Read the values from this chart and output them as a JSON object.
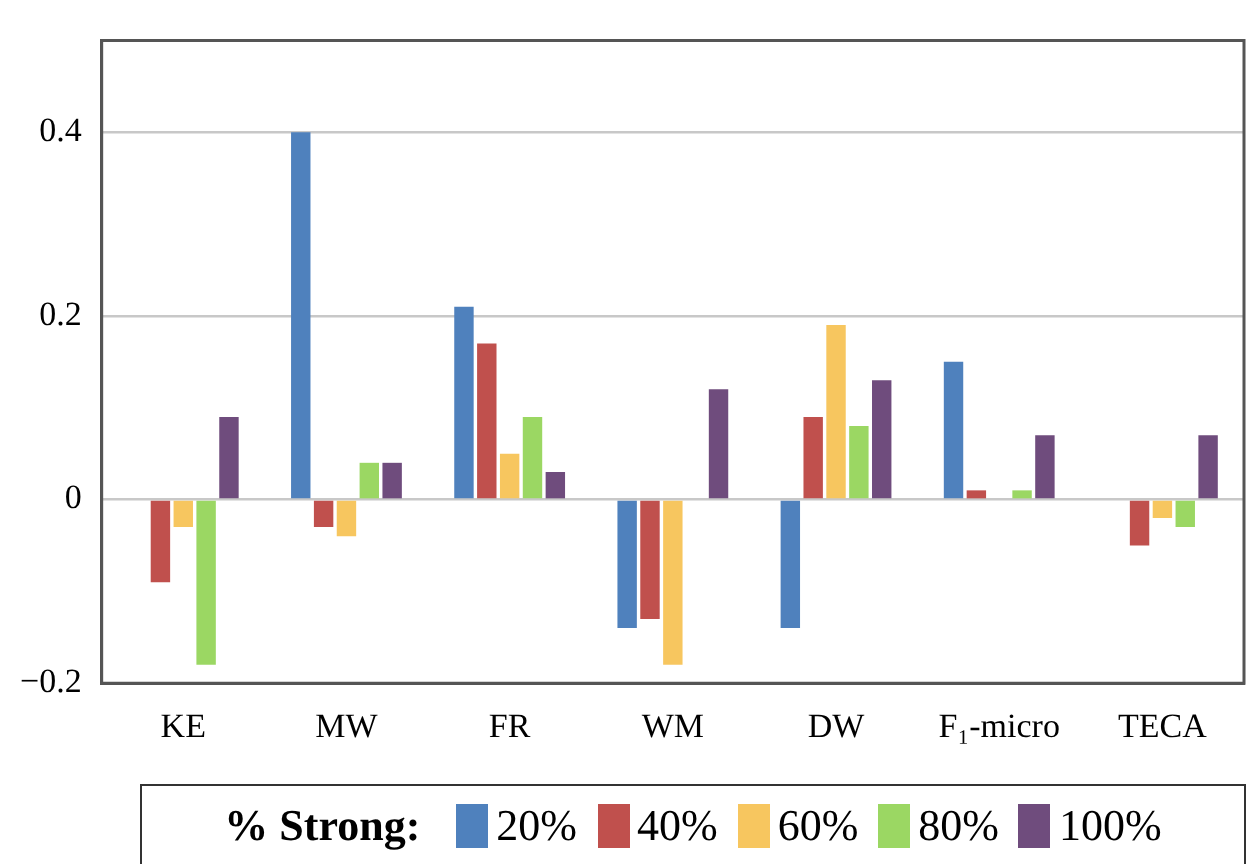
{
  "chart_data": {
    "type": "bar",
    "categories": [
      "KE",
      "MW",
      "FR",
      "WM",
      "DW",
      "F₁-micro",
      "TECA"
    ],
    "legend_title": "% Strong:",
    "series": [
      {
        "name": "20%",
        "color": "#4f81bd",
        "values": [
          0,
          0.4,
          0.21,
          -0.14,
          -0.14,
          0.15,
          0
        ]
      },
      {
        "name": "40%",
        "color": "#c0504d",
        "values": [
          -0.09,
          -0.03,
          0.17,
          -0.13,
          0.09,
          0.01,
          -0.05
        ]
      },
      {
        "name": "60%",
        "color": "#f7c65f",
        "values": [
          -0.03,
          -0.04,
          0.05,
          -0.18,
          0.19,
          0,
          -0.02
        ]
      },
      {
        "name": "80%",
        "color": "#9bd763",
        "values": [
          -0.18,
          0.04,
          0.09,
          0,
          0.08,
          0.01,
          -0.03
        ]
      },
      {
        "name": "100%",
        "color": "#6f4c7d",
        "values": [
          0.09,
          0.04,
          0.03,
          0.12,
          0.13,
          0.07,
          0.07
        ]
      }
    ],
    "ylim": [
      -0.2,
      0.5
    ],
    "yticks": [
      {
        "value": -0.2,
        "label": "−0.2"
      },
      0,
      0.2,
      0.4
    ],
    "grid": "y",
    "legend": "bottom"
  }
}
